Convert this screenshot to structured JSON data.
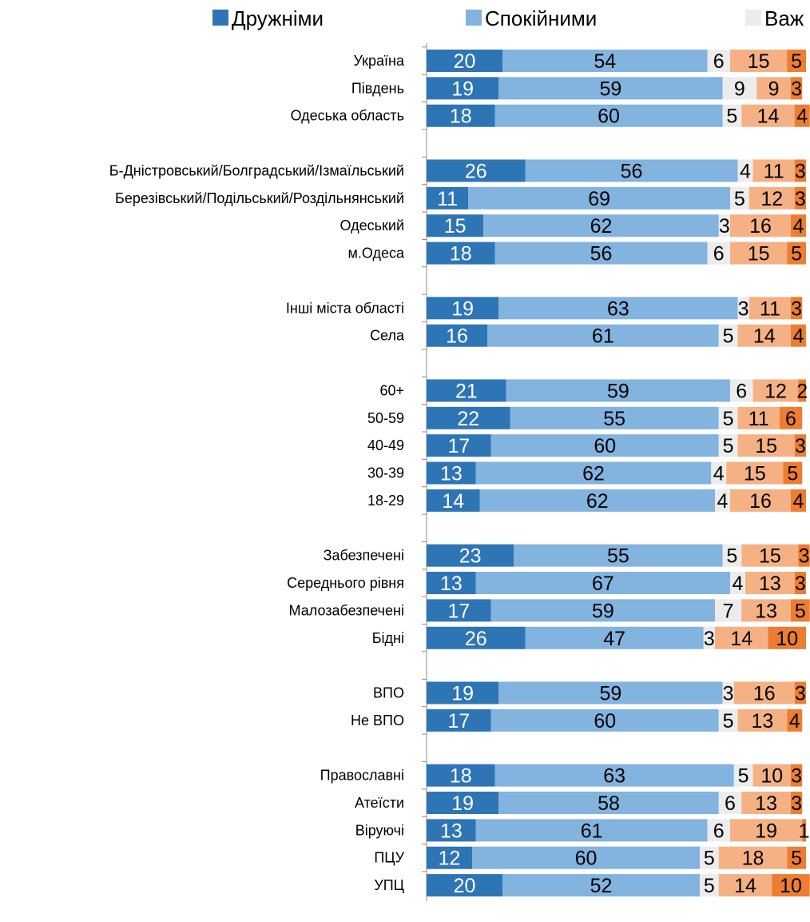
{
  "chart_data": {
    "type": "bar",
    "orientation": "horizontal",
    "stacked": true,
    "legend_position": "top",
    "categories": [
      "Україна",
      "Південь",
      "Одеська область",
      "",
      "Б-Дністровський/Болградський/Ізмаїльський",
      "Березівський/Подільський/Роздільнянський",
      "Одеський",
      "м.Одеса",
      "",
      "Інші міста області",
      "Села",
      "",
      "60+",
      "50-59",
      "40-49",
      "30-39",
      "18-29",
      "",
      "Забезпечені",
      "Середнього рівня",
      "Малозабезпечені",
      "Бідні",
      "",
      "ВПО",
      "Не ВПО",
      "",
      "Православні",
      "Атеїсти",
      "Віруючі",
      "ПЦУ",
      "УПЦ"
    ],
    "series": [
      {
        "name": "Дружніми",
        "color": "#2e75b6",
        "text_color": "#ffffff",
        "values": [
          20,
          19,
          18,
          null,
          26,
          11,
          15,
          18,
          null,
          19,
          16,
          null,
          21,
          22,
          17,
          13,
          14,
          null,
          23,
          13,
          17,
          26,
          null,
          19,
          17,
          null,
          18,
          19,
          13,
          12,
          20
        ]
      },
      {
        "name": "Спокійними",
        "color": "#83b3df",
        "text_color": "#000000",
        "values": [
          54,
          59,
          60,
          null,
          56,
          69,
          62,
          56,
          null,
          63,
          61,
          null,
          59,
          55,
          60,
          62,
          62,
          null,
          55,
          67,
          59,
          47,
          null,
          59,
          60,
          null,
          63,
          58,
          61,
          60,
          52
        ]
      },
      {
        "name": "Важ",
        "color": "#ececec",
        "text_color": "#000000",
        "values": [
          6,
          9,
          5,
          null,
          4,
          5,
          3,
          6,
          null,
          3,
          5,
          null,
          6,
          5,
          5,
          4,
          4,
          null,
          5,
          4,
          7,
          3,
          null,
          3,
          5,
          null,
          5,
          6,
          6,
          5,
          5
        ]
      },
      {
        "name": "",
        "color": "#f5b183",
        "text_color": "#000000",
        "values": [
          15,
          9,
          14,
          null,
          11,
          12,
          16,
          15,
          null,
          11,
          14,
          null,
          12,
          11,
          15,
          15,
          16,
          null,
          15,
          13,
          13,
          14,
          null,
          16,
          13,
          null,
          10,
          13,
          19,
          18,
          14
        ]
      },
      {
        "name": "",
        "color": "#ed7d31",
        "text_color": "#000000",
        "values": [
          5,
          3,
          4,
          null,
          3,
          3,
          4,
          5,
          null,
          3,
          4,
          null,
          2,
          6,
          3,
          5,
          4,
          null,
          3,
          3,
          5,
          10,
          null,
          3,
          4,
          null,
          3,
          3,
          1,
          5,
          10
        ]
      }
    ]
  }
}
